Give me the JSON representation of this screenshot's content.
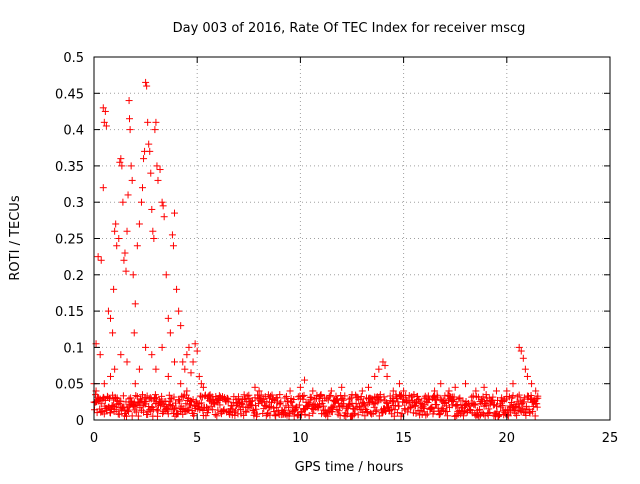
{
  "chart_data": {
    "type": "scatter",
    "title": "Day 003 of 2016, Rate Of TEC Index for receiver mscg",
    "xlabel": "GPS time / hours",
    "ylabel": "ROTI / TECUs",
    "xlim": [
      0,
      25
    ],
    "ylim": [
      0,
      0.5
    ],
    "grid": true,
    "x_ticks": [
      0,
      5,
      10,
      15,
      20,
      25
    ],
    "x_tick_labels": [
      "0",
      "5",
      "10",
      "15",
      "20",
      "25"
    ],
    "y_ticks": [
      0,
      0.05,
      0.1,
      0.15,
      0.2,
      0.25,
      0.3,
      0.35,
      0.4,
      0.45,
      0.5
    ],
    "y_tick_labels": [
      "0",
      "0.05",
      "0.1",
      "0.15",
      "0.2",
      "0.25",
      "0.3",
      "0.35",
      "0.4",
      "0.45",
      "0.5"
    ],
    "marker": "+",
    "marker_color": "#ff0000",
    "series": [
      {
        "name": "ROTI",
        "points": [
          [
            0.1,
            0.105
          ],
          [
            0.2,
            0.225
          ],
          [
            0.35,
            0.22
          ],
          [
            0.45,
            0.43
          ],
          [
            0.5,
            0.41
          ],
          [
            0.55,
            0.425
          ],
          [
            0.6,
            0.405
          ],
          [
            0.45,
            0.32
          ],
          [
            0.7,
            0.15
          ],
          [
            0.8,
            0.14
          ],
          [
            0.9,
            0.12
          ],
          [
            0.95,
            0.18
          ],
          [
            1.0,
            0.26
          ],
          [
            1.05,
            0.27
          ],
          [
            1.1,
            0.24
          ],
          [
            1.2,
            0.25
          ],
          [
            1.25,
            0.355
          ],
          [
            1.3,
            0.36
          ],
          [
            1.35,
            0.35
          ],
          [
            1.4,
            0.3
          ],
          [
            1.45,
            0.22
          ],
          [
            1.5,
            0.23
          ],
          [
            1.55,
            0.205
          ],
          [
            1.6,
            0.26
          ],
          [
            1.65,
            0.31
          ],
          [
            1.7,
            0.44
          ],
          [
            1.72,
            0.415
          ],
          [
            1.75,
            0.4
          ],
          [
            1.8,
            0.35
          ],
          [
            1.85,
            0.33
          ],
          [
            1.9,
            0.2
          ],
          [
            1.95,
            0.12
          ],
          [
            2.0,
            0.16
          ],
          [
            2.1,
            0.24
          ],
          [
            2.2,
            0.27
          ],
          [
            2.3,
            0.3
          ],
          [
            2.35,
            0.32
          ],
          [
            2.4,
            0.36
          ],
          [
            2.45,
            0.37
          ],
          [
            2.5,
            0.465
          ],
          [
            2.55,
            0.46
          ],
          [
            2.6,
            0.41
          ],
          [
            2.65,
            0.38
          ],
          [
            2.7,
            0.37
          ],
          [
            2.75,
            0.34
          ],
          [
            2.8,
            0.29
          ],
          [
            2.85,
            0.26
          ],
          [
            2.9,
            0.25
          ],
          [
            2.95,
            0.4
          ],
          [
            3.0,
            0.41
          ],
          [
            3.05,
            0.35
          ],
          [
            3.1,
            0.33
          ],
          [
            3.2,
            0.345
          ],
          [
            3.3,
            0.3
          ],
          [
            3.35,
            0.295
          ],
          [
            3.4,
            0.28
          ],
          [
            3.5,
            0.2
          ],
          [
            3.6,
            0.14
          ],
          [
            3.7,
            0.12
          ],
          [
            3.8,
            0.255
          ],
          [
            3.85,
            0.24
          ],
          [
            3.9,
            0.285
          ],
          [
            4.0,
            0.18
          ],
          [
            4.1,
            0.15
          ],
          [
            4.2,
            0.13
          ],
          [
            4.3,
            0.08
          ],
          [
            4.4,
            0.07
          ],
          [
            4.5,
            0.09
          ],
          [
            4.6,
            0.1
          ],
          [
            4.7,
            0.065
          ],
          [
            4.8,
            0.08
          ],
          [
            4.9,
            0.105
          ],
          [
            5.0,
            0.095
          ],
          [
            5.1,
            0.06
          ],
          [
            5.2,
            0.05
          ],
          [
            5.3,
            0.045
          ],
          [
            0.0,
            0.05
          ],
          [
            0.1,
            0.04
          ],
          [
            0.3,
            0.09
          ],
          [
            0.5,
            0.05
          ],
          [
            0.8,
            0.06
          ],
          [
            1.0,
            0.07
          ],
          [
            1.3,
            0.09
          ],
          [
            1.6,
            0.08
          ],
          [
            2.0,
            0.05
          ],
          [
            2.2,
            0.07
          ],
          [
            2.5,
            0.1
          ],
          [
            2.8,
            0.09
          ],
          [
            3.0,
            0.07
          ],
          [
            3.3,
            0.1
          ],
          [
            3.6,
            0.06
          ],
          [
            3.9,
            0.08
          ],
          [
            4.2,
            0.05
          ],
          [
            4.5,
            0.04
          ],
          [
            5.5,
            0.03
          ],
          [
            6.0,
            0.028
          ],
          [
            6.5,
            0.025
          ],
          [
            7.0,
            0.032
          ],
          [
            7.5,
            0.03
          ],
          [
            7.8,
            0.045
          ],
          [
            8.0,
            0.04
          ],
          [
            8.5,
            0.03
          ],
          [
            9.0,
            0.035
          ],
          [
            9.5,
            0.04
          ],
          [
            10.0,
            0.045
          ],
          [
            10.2,
            0.055
          ],
          [
            10.6,
            0.04
          ],
          [
            11.0,
            0.035
          ],
          [
            11.5,
            0.04
          ],
          [
            12.0,
            0.045
          ],
          [
            12.5,
            0.035
          ],
          [
            13.0,
            0.04
          ],
          [
            13.3,
            0.045
          ],
          [
            13.6,
            0.06
          ],
          [
            13.8,
            0.07
          ],
          [
            14.0,
            0.08
          ],
          [
            14.1,
            0.075
          ],
          [
            14.2,
            0.06
          ],
          [
            14.5,
            0.04
          ],
          [
            14.8,
            0.05
          ],
          [
            15.0,
            0.04
          ],
          [
            15.5,
            0.035
          ],
          [
            16.0,
            0.03
          ],
          [
            16.5,
            0.04
          ],
          [
            16.8,
            0.05
          ],
          [
            17.2,
            0.04
          ],
          [
            17.5,
            0.045
          ],
          [
            18.0,
            0.05
          ],
          [
            18.5,
            0.04
          ],
          [
            18.9,
            0.045
          ],
          [
            19.0,
            0.035
          ],
          [
            19.5,
            0.04
          ],
          [
            20.0,
            0.04
          ],
          [
            20.3,
            0.05
          ],
          [
            20.6,
            0.1
          ],
          [
            20.7,
            0.095
          ],
          [
            20.8,
            0.085
          ],
          [
            20.9,
            0.07
          ],
          [
            21.0,
            0.06
          ],
          [
            21.2,
            0.05
          ],
          [
            21.4,
            0.04
          ],
          [
            21.5,
            0.03
          ]
        ]
      }
    ],
    "baseline": {
      "description": "dense band of points",
      "x_range": [
        0,
        21.5
      ],
      "y_range": [
        0.005,
        0.035
      ]
    }
  }
}
